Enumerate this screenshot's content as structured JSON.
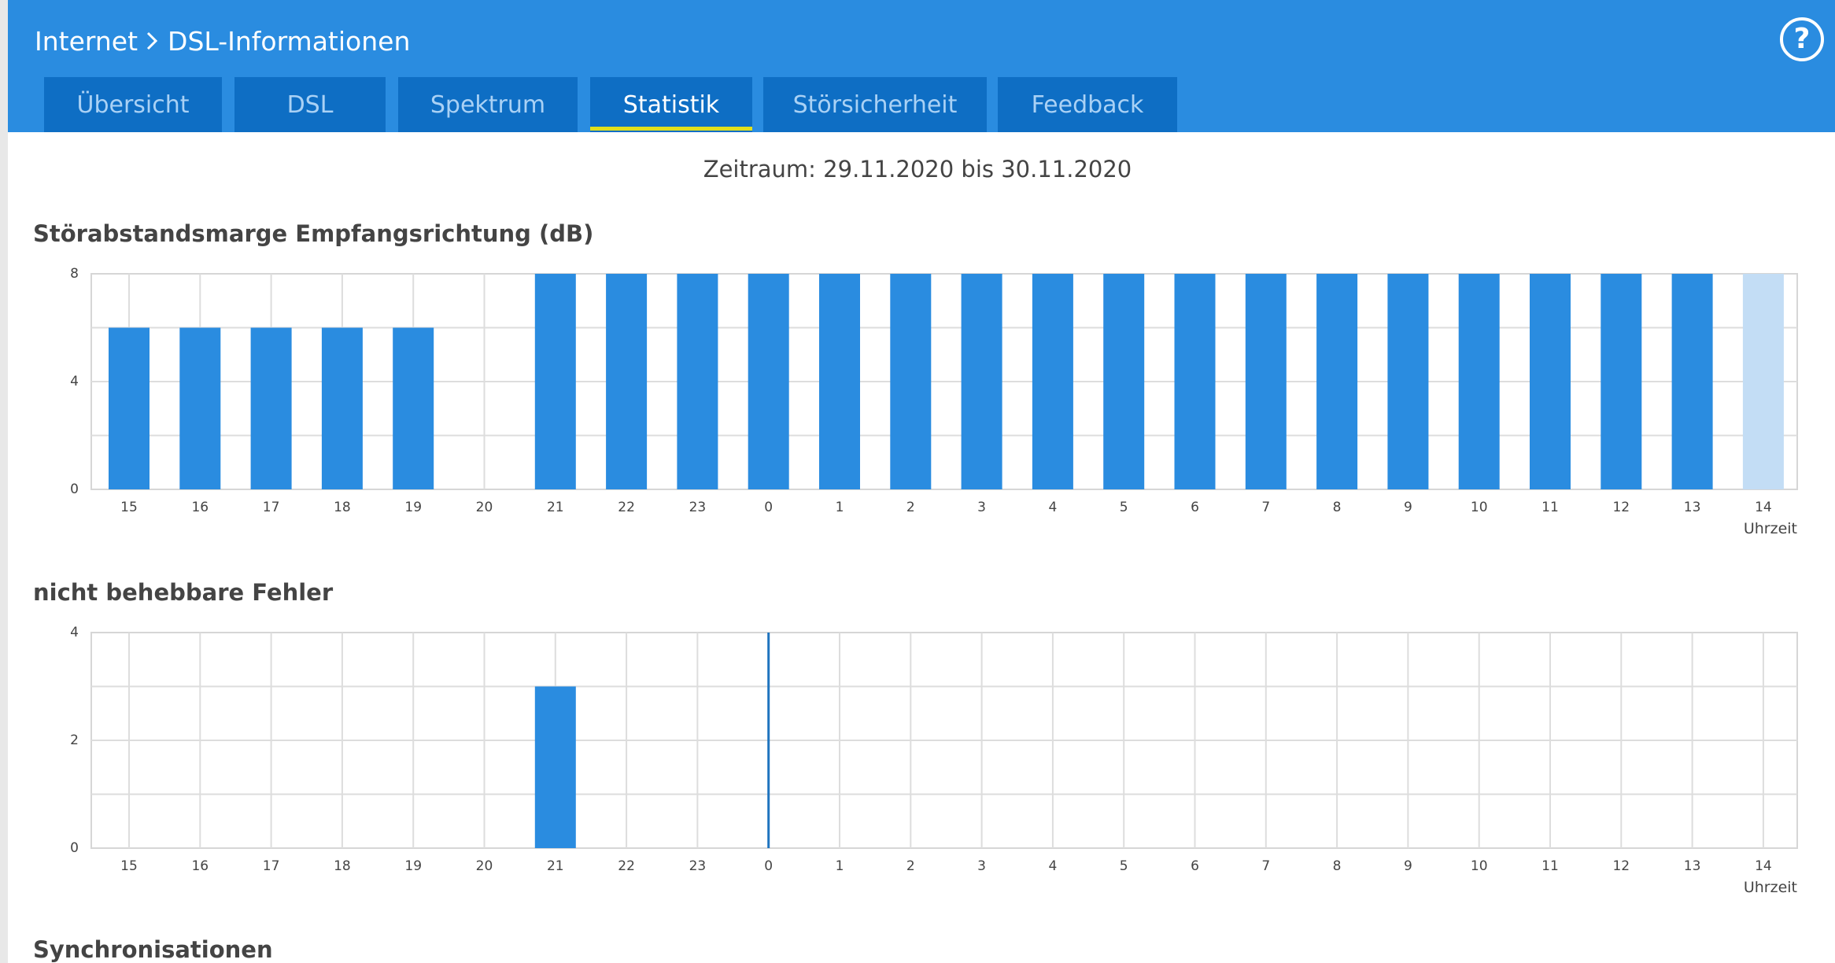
{
  "header": {
    "breadcrumb": [
      "Internet",
      "DSL-Informationen"
    ],
    "help_glyph": "?"
  },
  "tabs": [
    {
      "label": "Übersicht",
      "active": false
    },
    {
      "label": "DSL",
      "active": false
    },
    {
      "label": "Spektrum",
      "active": false
    },
    {
      "label": "Statistik",
      "active": true
    },
    {
      "label": "Störsicherheit",
      "active": false
    },
    {
      "label": "Feedback",
      "active": false
    }
  ],
  "period_text": "Zeitraum: 29.11.2020 bis 30.11.2020",
  "colors": {
    "header": "#2a8ce0",
    "tab_bg": "#0e6ec4",
    "tab_active_underline": "#e0df1c",
    "bar": "#2a8ce0",
    "bar_current": "#c3ddf5"
  },
  "chart_data": [
    {
      "type": "bar",
      "title": "Störabstandsmarge Empfangsrichtung (dB)",
      "xlabel": "Uhrzeit",
      "categories": [
        "15",
        "16",
        "17",
        "18",
        "19",
        "20",
        "21",
        "22",
        "23",
        "0",
        "1",
        "2",
        "3",
        "4",
        "5",
        "6",
        "7",
        "8",
        "9",
        "10",
        "11",
        "12",
        "13",
        "14"
      ],
      "values": [
        6,
        6,
        6,
        6,
        6,
        0,
        8,
        8,
        8,
        8,
        8,
        8,
        8,
        8,
        8,
        8,
        8,
        8,
        8,
        8,
        8,
        8,
        8,
        8
      ],
      "highlight_last": true,
      "yticks": [
        0,
        4,
        8
      ],
      "ylim": [
        0,
        8
      ],
      "grid": true
    },
    {
      "type": "bar",
      "title": "nicht behebbare Fehler",
      "xlabel": "Uhrzeit",
      "categories": [
        "15",
        "16",
        "17",
        "18",
        "19",
        "20",
        "21",
        "22",
        "23",
        "0",
        "1",
        "2",
        "3",
        "4",
        "5",
        "6",
        "7",
        "8",
        "9",
        "10",
        "11",
        "12",
        "13",
        "14"
      ],
      "values": [
        0,
        0,
        0,
        0,
        0,
        0,
        3,
        0,
        0,
        0,
        0,
        0,
        0,
        0,
        0,
        0,
        0,
        0,
        0,
        0,
        0,
        0,
        0,
        0
      ],
      "marker_line_category": "0",
      "yticks": [
        0,
        2,
        4
      ],
      "ylim": [
        0,
        4
      ],
      "grid": true
    },
    {
      "type": "bar",
      "title": "Synchronisationen"
    }
  ]
}
